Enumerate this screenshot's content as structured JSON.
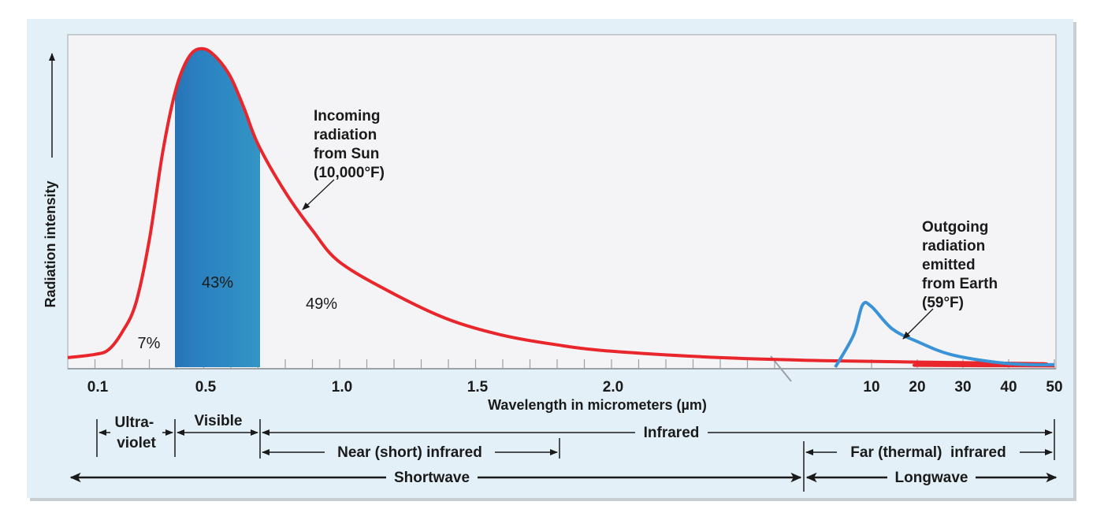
{
  "chart_data": {
    "type": "line",
    "title": "",
    "xlabel": "Wavelength in micrometers (µm)",
    "ylabel": "Radiation intensity",
    "grid": false,
    "x_tick_labels_shortwave": [
      "0.1",
      "0.5",
      "1.0",
      "1.5",
      "2.0"
    ],
    "x_tick_labels_longwave": [
      "10",
      "20",
      "30",
      "40",
      "50"
    ],
    "series": [
      {
        "name": "Incoming radiation from Sun (10,000°F)",
        "color": "#e8262b",
        "x": [
          0.0,
          0.1,
          0.15,
          0.2,
          0.25,
          0.3,
          0.35,
          0.4,
          0.45,
          0.5,
          0.55,
          0.6,
          0.65,
          0.7,
          0.8,
          0.9,
          1.0,
          1.2,
          1.4,
          1.6,
          1.8,
          2.0,
          2.4,
          2.8,
          3.2,
          3.6
        ],
        "y": [
          3,
          4,
          5.5,
          11,
          20,
          40,
          68,
          88,
          98,
          100,
          97,
          91,
          81,
          70,
          55,
          43,
          33,
          23,
          15,
          10,
          7,
          5,
          3,
          2,
          1.5,
          1
        ]
      },
      {
        "name": "Outgoing radiation emitted from Earth (59°F)",
        "color": "#3a93d6",
        "x": [
          6.0,
          8.0,
          9.0,
          10.0,
          12.0,
          15.0,
          20.0,
          30.0,
          40.0,
          50.0
        ],
        "y": [
          0,
          10,
          19.5,
          19,
          12,
          8,
          4,
          1.5,
          0.8,
          0.8
        ]
      }
    ],
    "annotations": [
      {
        "text": "Incoming radiation from Sun (10,000°F)",
        "lines": [
          "Incoming",
          "radiation",
          "from Sun",
          "(10,000°F)"
        ]
      },
      {
        "text": "Outgoing radiation emitted from Earth (59°F)",
        "lines": [
          "Outgoing",
          "radiation",
          "emitted",
          "from Earth",
          "(59°F)"
        ]
      }
    ],
    "shares": [
      {
        "label": "7%",
        "band": "Ultraviolet"
      },
      {
        "label": "43%",
        "band": "Visible"
      },
      {
        "label": "49%",
        "band": "Infrared"
      }
    ],
    "bands": {
      "ultraviolet": [
        "Ultra-",
        "violet"
      ],
      "visible": "Visible",
      "infrared": "Infrared",
      "near_infrared": "Near (short) infrared",
      "far_infrared": "Far (thermal)  infrared",
      "shortwave": "Shortwave",
      "longwave": "Longwave"
    },
    "colors": {
      "panel": "#e3f0f8",
      "plot_bg": "#f4f4f6",
      "sun_curve": "#e8262b",
      "earth_curve": "#3a93d6",
      "visible_spectrum": [
        "#1e3a7a",
        "#2a7fc0",
        "#3aa7c8",
        "#2f9e6c",
        "#4fb04a",
        "#9cc83d",
        "#efe43a",
        "#f1a73a",
        "#e6542d"
      ]
    }
  }
}
